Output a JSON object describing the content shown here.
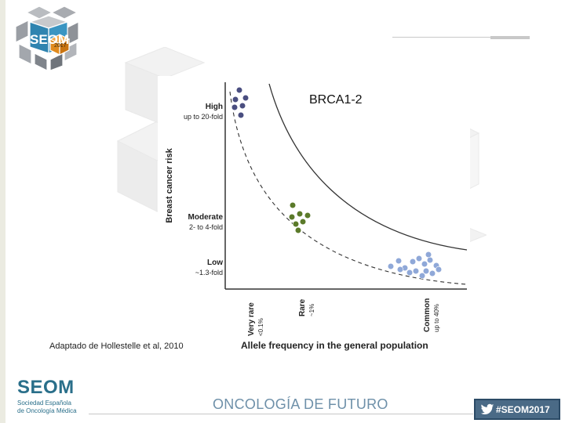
{
  "header": {
    "logo_text": "SEOM",
    "logo_year": "2017"
  },
  "chart_data": {
    "type": "scatter",
    "title": "BRCA1-2",
    "ylabel": "Breast cancer risk",
    "xlabel": "Allele frequency in the general population",
    "y_categories": [
      {
        "label": "High",
        "sub": "up to 20-fold"
      },
      {
        "label": "Moderate",
        "sub": "2- to 4-fold"
      },
      {
        "label": "Low",
        "sub": "~1.3-fold"
      }
    ],
    "x_categories": [
      {
        "label": "Very rare",
        "sub": "<0.1%"
      },
      {
        "label": "Rare",
        "sub": "~1%"
      },
      {
        "label": "Common",
        "sub": "up to 40%"
      }
    ],
    "series": [
      {
        "group": "high-risk very rare variants",
        "color": "#4a4e80",
        "count": 6
      },
      {
        "group": "moderate-risk rare variants",
        "color": "#5b7a2a",
        "count": 7
      },
      {
        "group": "low-risk common variants",
        "color": "#8fa8d8",
        "count": 16
      }
    ],
    "grid": false
  },
  "source_text": "Adaptado de Hollestelle et al, 2010",
  "footer": {
    "logo_word": "SEOM",
    "logo_sub1": "Sociedad Española",
    "logo_sub2": "de Oncología Médica",
    "tagline": "ONCOLOGÍA DE FUTURO",
    "hashtag": "#SEOM2017"
  },
  "colors": {
    "brand_blue": "#2a6f8a",
    "hashtag_bg": "#4a6a86",
    "logo_orange": "#e08a1e"
  }
}
